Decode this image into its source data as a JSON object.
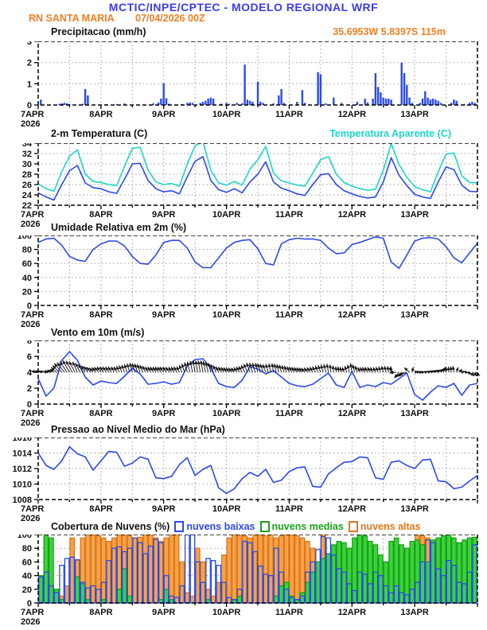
{
  "header": {
    "title": "MCTIC/INPE/CPTEC - MODELO REGIONAL WRF",
    "station": "RN SANTA MARIA",
    "run": "07/04/2026 00Z",
    "location": "35.6953W 5.8397S 115m"
  },
  "colors": {
    "header_blue": "#3b3bf0",
    "header_orange": "#ef7f24",
    "line_blue": "#2b49ec",
    "line_cyan": "#1fd6c6",
    "cloud_low_blue": "#2b49ec",
    "cloud_mid_green_stroke": "#18a018",
    "cloud_mid_green_fill": "#3bd43b",
    "cloud_high_orange_stroke": "#e0761a",
    "cloud_high_orange_fill": "#f5a44a"
  },
  "xaxis": {
    "days": [
      "7APR",
      "8APR",
      "9APR",
      "10APR",
      "11APR",
      "12APR",
      "13APR"
    ],
    "year": "2026",
    "hours": 168
  },
  "chart_data": [
    {
      "id": "precipitation",
      "type": "bar",
      "title": "Precipitacao (mm/h)",
      "ylim": [
        0,
        3
      ],
      "yticks": [
        0,
        1,
        2,
        3
      ],
      "color": "#2b49ec",
      "values_by_hour": {
        "1": 0.25,
        "8": 0.05,
        "9": 0.08,
        "10": 0.1,
        "11": 0.08,
        "12": 0.05,
        "17": 0.06,
        "18": 0.75,
        "19": 0.45,
        "26": 0.04,
        "30": 0.05,
        "33": 0.07,
        "44": 0.08,
        "46": 0.12,
        "47": 0.3,
        "48": 1.02,
        "49": 0.32,
        "50": 0.06,
        "55": 0.05,
        "57": 0.1,
        "58": 0.12,
        "59": 0.1,
        "62": 0.1,
        "63": 0.15,
        "64": 0.2,
        "65": 0.3,
        "66": 0.35,
        "67": 0.3,
        "70": 0.06,
        "72": 0.1,
        "73": 0.06,
        "76": 0.1,
        "78": 0.08,
        "79": 1.9,
        "80": 0.25,
        "81": 0.2,
        "82": 0.15,
        "84": 1.1,
        "85": 0.15,
        "86": 0.1,
        "90": 0.08,
        "92": 0.45,
        "93": 0.75,
        "94": 0.1,
        "99": 0.15,
        "101": 0.7,
        "102": 0.1,
        "107": 1.55,
        "108": 1.45,
        "110": 0.08,
        "113": 0.35,
        "116": 0.1,
        "122": 0.15,
        "125": 0.3,
        "126": 0.12,
        "128": 0.3,
        "129": 1.5,
        "130": 0.85,
        "131": 0.6,
        "132": 0.35,
        "133": 0.3,
        "134": 0.3,
        "135": 0.25,
        "139": 2.0,
        "140": 1.5,
        "141": 0.95,
        "142": 0.35,
        "143": 0.1,
        "146": 0.1,
        "147": 0.3,
        "148": 0.65,
        "149": 0.35,
        "150": 0.25,
        "151": 0.3,
        "152": 0.25,
        "153": 0.2,
        "154": 0.1,
        "158": 0.1,
        "159": 0.25,
        "160": 0.2,
        "163": 0.05,
        "165": 0.1,
        "166": 0.15,
        "167": 0.1
      }
    },
    {
      "id": "temperature",
      "type": "line",
      "title": "2-m Temperatura (C)",
      "ylim": [
        22,
        34
      ],
      "yticks": [
        22,
        24,
        26,
        28,
        30,
        32,
        34
      ],
      "step_hours": 3,
      "series": [
        {
          "name": "2-m Temperatura (C)",
          "color": "#2b49ec",
          "values": [
            24.4,
            23.6,
            23.0,
            26.0,
            28.7,
            29.7,
            26.3,
            25.4,
            25.2,
            24.6,
            24.3,
            27.0,
            30.0,
            30.1,
            26.8,
            25.2,
            24.6,
            24.8,
            24.2,
            27.5,
            30.5,
            31.4,
            26.8,
            25.0,
            24.5,
            25.2,
            24.4,
            26.5,
            28.0,
            30.4,
            26.5,
            25.3,
            24.8,
            24.2,
            23.9,
            26.0,
            27.9,
            28.1,
            26.0,
            24.8,
            24.2,
            23.7,
            23.4,
            23.6,
            26.5,
            31.2,
            27.8,
            25.8,
            24.1,
            23.6,
            23.3,
            26.5,
            29.4,
            28.9,
            25.9,
            24.7,
            24.6
          ]
        },
        {
          "name": "Temperatura Aparente (C)",
          "color": "#1fd6c6",
          "values": [
            26.1,
            25.2,
            24.7,
            28.5,
            31.5,
            32.7,
            28.0,
            26.6,
            26.4,
            26.0,
            25.8,
            29.5,
            33.0,
            33.2,
            28.8,
            26.5,
            26.0,
            26.2,
            25.7,
            30.0,
            33.5,
            34.3,
            28.8,
            26.3,
            25.9,
            26.6,
            25.9,
            29.0,
            30.8,
            33.4,
            28.2,
            26.7,
            26.3,
            25.9,
            25.7,
            28.2,
            30.8,
            31.4,
            28.0,
            26.4,
            25.7,
            25.2,
            24.9,
            25.1,
            28.8,
            33.9,
            29.9,
            27.4,
            25.6,
            25.0,
            24.6,
            28.5,
            31.9,
            32.1,
            27.7,
            26.4,
            26.3
          ]
        }
      ]
    },
    {
      "id": "humidity",
      "type": "line",
      "title": "Umidade Relativa em 2m (%)",
      "ylim": [
        0,
        100
      ],
      "yticks": [
        0,
        20,
        40,
        60,
        80,
        100
      ],
      "step_hours": 3,
      "series": [
        {
          "name": "Umidade Relativa em 2m (%)",
          "color": "#2b49ec",
          "values": [
            90,
            95,
            96,
            86,
            70,
            65,
            63,
            80,
            88,
            92,
            92,
            85,
            70,
            60,
            59,
            72,
            90,
            93,
            93,
            82,
            62,
            54,
            54,
            68,
            82,
            90,
            93,
            94,
            81,
            60,
            58,
            88,
            94,
            96,
            95,
            95,
            93,
            82,
            74,
            75,
            87,
            90,
            94,
            98,
            96,
            62,
            53,
            72,
            92,
            96,
            97,
            95,
            84,
            68,
            61,
            75,
            89
          ]
        }
      ]
    },
    {
      "id": "wind",
      "type": "wind",
      "title": "Vento em 10m (m/s)",
      "ylim": [
        0,
        8
      ],
      "yticks": [
        0,
        2,
        4,
        6,
        8
      ],
      "step_hours": 3,
      "vector_anchor": 4,
      "series": [
        {
          "name": "Vento em 10m (m/s)",
          "color": "#2b49ec",
          "values": [
            3.2,
            1.0,
            2.0,
            5.5,
            6.6,
            5.5,
            3.4,
            2.4,
            2.9,
            2.7,
            2.6,
            3.5,
            4.5,
            3.8,
            2.5,
            2.6,
            2.8,
            2.5,
            2.7,
            4.8,
            5.6,
            5.7,
            4.5,
            2.6,
            2.2,
            2.1,
            3.0,
            4.7,
            4.4,
            3.8,
            4.2,
            3.4,
            2.6,
            2.3,
            2.2,
            2.5,
            3.2,
            3.9,
            2.4,
            2.1,
            4.1,
            2.1,
            2.4,
            2.2,
            2.7,
            2.5,
            3.2,
            3.9,
            1.2,
            0.5,
            1.5,
            2.3,
            2.1,
            2.6,
            1.1,
            2.4,
            2.6
          ]
        }
      ],
      "angles_deg": [
        170,
        160,
        140,
        130,
        120,
        115,
        120,
        130,
        125,
        120,
        115,
        110,
        105,
        110,
        115,
        120,
        125,
        120,
        115,
        105,
        100,
        100,
        105,
        115,
        120,
        125,
        120,
        110,
        105,
        110,
        100,
        105,
        110,
        120,
        130,
        120,
        110,
        100,
        95,
        110,
        100,
        110,
        120,
        115,
        105,
        95,
        230,
        200,
        15,
        20,
        25,
        30,
        90,
        100,
        20,
        -40,
        -30
      ]
    },
    {
      "id": "pressure",
      "type": "line",
      "title": "Pressao ao Nivel Medio do Mar (hPa)",
      "ylim": [
        1008,
        1016
      ],
      "yticks": [
        1008,
        1010,
        1012,
        1014,
        1016
      ],
      "step_hours": 3,
      "series": [
        {
          "name": "Pressao ao Nivel Medio do Mar (hPa)",
          "color": "#2b49ec",
          "values": [
            1014.0,
            1012.4,
            1011.9,
            1013.0,
            1014.8,
            1013.9,
            1013.5,
            1011.8,
            1013.0,
            1014.2,
            1014.1,
            1012.3,
            1012.7,
            1013.5,
            1013.2,
            1010.8,
            1010.7,
            1011.0,
            1012.5,
            1013.4,
            1011.1,
            1011.9,
            1012.4,
            1009.5,
            1008.8,
            1009.4,
            1010.7,
            1011.5,
            1011.0,
            1011.9,
            1010.2,
            1010.5,
            1011.6,
            1012.1,
            1012.2,
            1009.7,
            1009.6,
            1011.3,
            1012.1,
            1012.8,
            1012.9,
            1013.5,
            1013.4,
            1010.8,
            1010.6,
            1012.8,
            1013.0,
            1012.4,
            1012.0,
            1013.1,
            1013.2,
            1010.4,
            1010.3,
            1009.4,
            1009.6,
            1010.4,
            1011.1
          ]
        }
      ]
    },
    {
      "id": "clouds",
      "type": "cloudbars",
      "title": "Cobertura de Nuvens (%)",
      "ylim": [
        0,
        100
      ],
      "yticks": [
        0,
        20,
        40,
        60,
        80,
        100
      ],
      "step_hours": 2,
      "series": [
        {
          "label": "nuvens baixas",
          "color": "#2b49ec",
          "fill": "none",
          "values": [
            38,
            45,
            25,
            15,
            55,
            65,
            67,
            63,
            30,
            22,
            25,
            20,
            30,
            62,
            80,
            82,
            75,
            80,
            95,
            88,
            72,
            83,
            93,
            88,
            40,
            10,
            8,
            25,
            100,
            100,
            60,
            30,
            65,
            62,
            55,
            30,
            8,
            5,
            20,
            90,
            88,
            75,
            54,
            42,
            40,
            80,
            45,
            20,
            8,
            5,
            10,
            45,
            60,
            78,
            97,
            95,
            70,
            50,
            45,
            28,
            18,
            45,
            42,
            28,
            45,
            40,
            25,
            15,
            25,
            15,
            12,
            20,
            30,
            60,
            92,
            88,
            50,
            40,
            62,
            55,
            30,
            28,
            45,
            85
          ]
        },
        {
          "label": "nuvens medias",
          "color": "#18a018",
          "color_fill": "#3bd43b",
          "values": [
            40,
            100,
            95,
            20,
            5,
            0,
            0,
            38,
            28,
            5,
            0,
            0,
            5,
            0,
            0,
            20,
            50,
            10,
            0,
            0,
            0,
            0,
            0,
            5,
            20,
            5,
            0,
            0,
            0,
            0,
            0,
            0,
            5,
            0,
            0,
            0,
            0,
            5,
            10,
            0,
            0,
            0,
            0,
            0,
            0,
            10,
            25,
            30,
            10,
            5,
            15,
            30,
            45,
            60,
            65,
            72,
            85,
            90,
            88,
            80,
            95,
            100,
            98,
            90,
            85,
            70,
            60,
            90,
            95,
            85,
            80,
            90,
            92,
            85,
            60,
            92,
            95,
            98,
            100,
            95,
            88,
            92,
            95,
            96
          ]
        },
        {
          "label": "nuvens altas",
          "color": "#e0761a",
          "color_fill": "#f5a44a",
          "values": [
            0,
            0,
            0,
            0,
            10,
            25,
            95,
            63,
            95,
            100,
            100,
            98,
            95,
            90,
            95,
            100,
            100,
            98,
            95,
            96,
            100,
            100,
            95,
            90,
            95,
            100,
            100,
            60,
            15,
            10,
            80,
            60,
            20,
            10,
            30,
            70,
            95,
            100,
            100,
            98,
            95,
            100,
            100,
            98,
            100,
            95,
            98,
            100,
            100,
            98,
            95,
            90,
            80,
            60,
            100,
            40,
            10,
            0,
            0,
            5,
            10,
            0,
            0,
            0,
            0,
            0,
            0,
            0,
            0,
            5,
            10,
            30,
            100,
            98,
            95,
            80,
            75,
            20,
            0,
            0,
            5,
            10,
            0,
            0
          ]
        }
      ]
    }
  ]
}
